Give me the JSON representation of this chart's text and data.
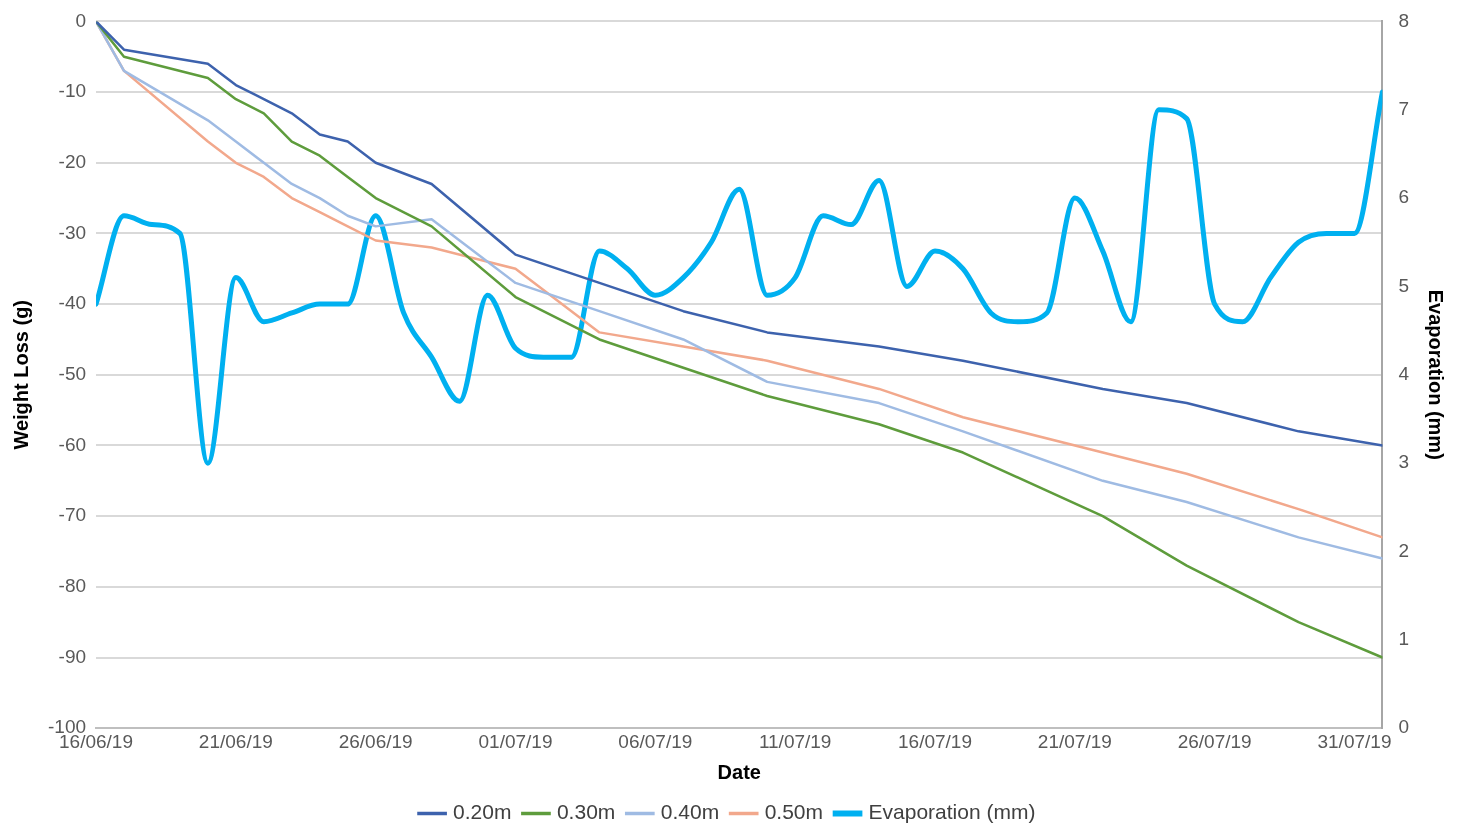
{
  "chart_data": {
    "type": "line",
    "xlabel": "Date",
    "ylabel": "Weight Loss (g)",
    "y2label": "Evaporation (mm)",
    "x": [
      "--06-16",
      "--06-17",
      "--06-20",
      "--06-21",
      "--06-22",
      "--06-23",
      "--06-24",
      "--06-25",
      "--06-26",
      "--06-28",
      "--07-01",
      "--07-04",
      "--07-07",
      "--07-10",
      "--07-14",
      "--07-17",
      "--07-22",
      "--07-25",
      "--07-29",
      "--08-01"
    ],
    "series": [
      {
        "name": "0.20m",
        "color": "#3d62ad",
        "values": [
          0,
          -4,
          -6,
          -9,
          -11,
          -13,
          -16,
          -17,
          -20,
          -23,
          -33,
          -37,
          -41,
          -44,
          -46,
          -48,
          -52,
          -54,
          -58,
          -60
        ]
      },
      {
        "name": "0.30m",
        "color": "#5e9c3c",
        "values": [
          0,
          -5,
          -8,
          -11,
          -13,
          -17,
          -19,
          -22,
          -25,
          -29,
          -39,
          -45,
          -49,
          -53,
          -57,
          -61,
          -70,
          -77,
          -85,
          -90
        ]
      },
      {
        "name": "0.40m",
        "color": "#9fbbe3",
        "values": [
          0,
          -7,
          -14,
          -17,
          -20,
          -23,
          -25,
          -27.5,
          -29,
          -28,
          -37,
          -41,
          -45,
          -51,
          -54,
          -58,
          -65,
          -68,
          -73,
          -76
        ]
      },
      {
        "name": "0.50m",
        "color": "#f2a88c",
        "values": [
          0,
          -7,
          -17,
          -20,
          -22,
          -25,
          -27,
          -29,
          -31,
          -32,
          -35,
          -44,
          -46,
          -48,
          -52,
          -56,
          -61,
          -64,
          -69,
          -73
        ]
      },
      {
        "name": "Evaporation (mm)",
        "color": "#00b0f0",
        "axis": "y2",
        "x": [
          "--06-16",
          "--06-17",
          "--06-18",
          "--06-19",
          "--06-20",
          "--06-21",
          "--06-22",
          "--06-23",
          "--06-24",
          "--06-25",
          "--06-26",
          "--06-27",
          "--06-28",
          "--06-29",
          "--06-30",
          "--07-01",
          "--07-02",
          "--07-03",
          "--07-04",
          "--07-05",
          "--07-06",
          "--07-07",
          "--07-08",
          "--07-09",
          "--07-10",
          "--07-11",
          "--07-12",
          "--07-13",
          "--07-14",
          "--07-15",
          "--07-16",
          "--07-17",
          "--07-18",
          "--07-19",
          "--07-20",
          "--07-21",
          "--07-22",
          "--07-23",
          "--07-24",
          "--07-25",
          "--07-26",
          "--07-27",
          "--07-28",
          "--07-29",
          "--07-30",
          "--07-31",
          "--08-01"
        ],
        "values": [
          4.8,
          5.8,
          5.7,
          5.6,
          3.0,
          5.1,
          4.6,
          4.7,
          4.8,
          4.8,
          5.8,
          4.7,
          4.2,
          3.7,
          4.9,
          4.3,
          4.2,
          4.2,
          5.4,
          5.2,
          4.9,
          5.1,
          5.5,
          6.1,
          4.9,
          5.1,
          5.8,
          5.7,
          6.2,
          5.0,
          5.4,
          5.2,
          4.7,
          4.6,
          4.7,
          6.0,
          5.4,
          4.6,
          7.0,
          6.9,
          4.8,
          4.6,
          5.1,
          5.5,
          5.6,
          5.6,
          7.2
        ]
      }
    ],
    "xlim": [
      "--06-16",
      "--08-01"
    ],
    "xticks": [
      {
        "value": "--06-16",
        "label": "16/06/19"
      },
      {
        "value": "--06-21",
        "label": "21/06/19"
      },
      {
        "value": "--06-26",
        "label": "26/06/19"
      },
      {
        "value": "--07-01",
        "label": "01/07/19"
      },
      {
        "value": "--07-06",
        "label": "06/07/19"
      },
      {
        "value": "--07-11",
        "label": "11/07/19"
      },
      {
        "value": "--07-16",
        "label": "16/07/19"
      },
      {
        "value": "--07-21",
        "label": "21/07/19"
      },
      {
        "value": "--07-26",
        "label": "26/07/19"
      },
      {
        "value": "--07-31",
        "label": "31/07/19"
      }
    ],
    "ylim": [
      -100,
      0
    ],
    "yticks": [
      -100,
      -90,
      -80,
      -70,
      -60,
      -50,
      -40,
      -30,
      -20,
      -10,
      0
    ],
    "y2lim": [
      0,
      8
    ],
    "y2ticks": [
      0,
      1,
      2,
      3,
      4,
      5,
      6,
      7,
      8
    ],
    "grid": "y",
    "legend": "bottom",
    "marker": "none",
    "line_style": "solid"
  }
}
